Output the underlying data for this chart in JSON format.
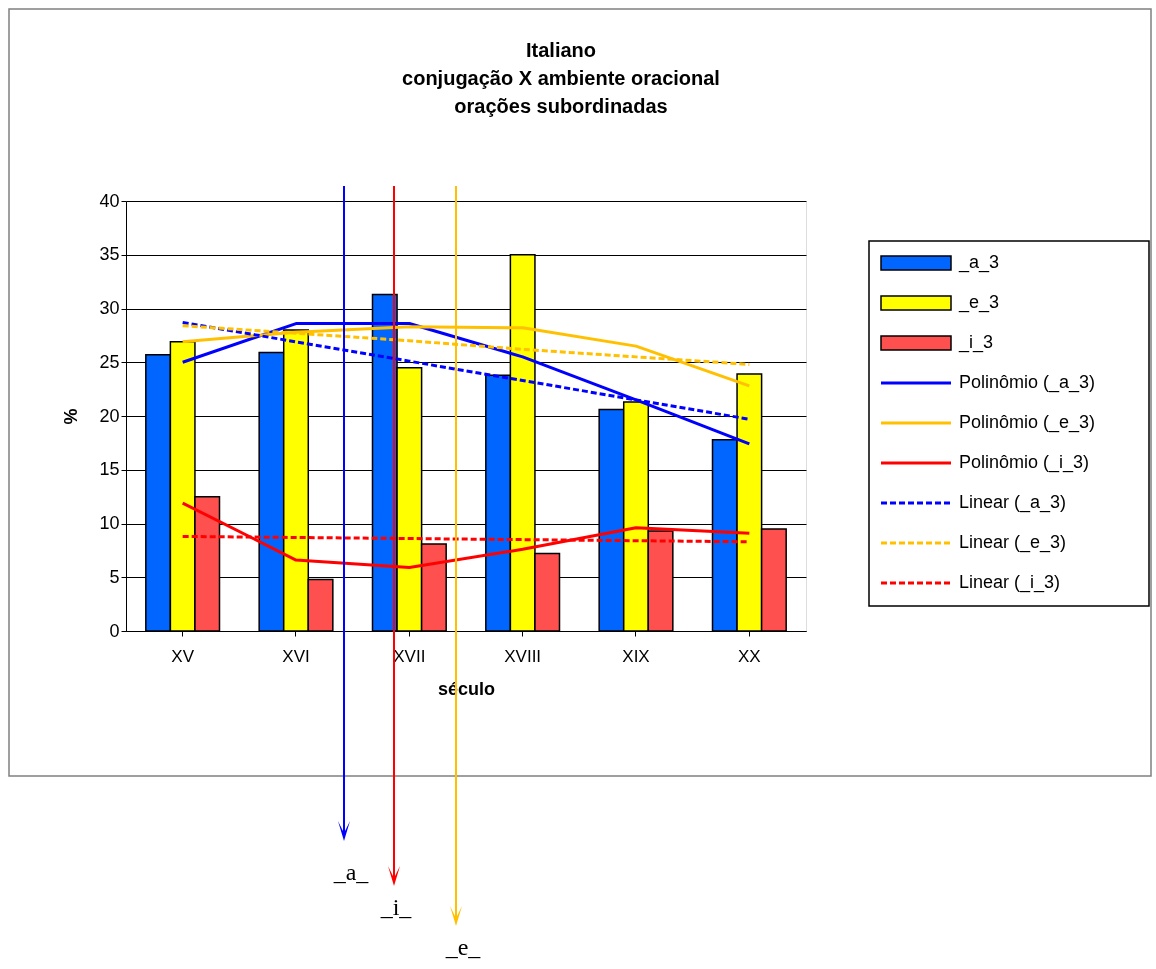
{
  "chart_data": {
    "type": "bar",
    "title": "Italiano\nconjugação X ambiente oracional\norações subordinadas",
    "xlabel": "século",
    "ylabel": "%",
    "categories": [
      "XV",
      "XVI",
      "XVII",
      "XVIII",
      "XIX",
      "XX"
    ],
    "ylim": [
      0,
      40
    ],
    "yticks": [
      0,
      5,
      10,
      15,
      20,
      25,
      30,
      35,
      40
    ],
    "grid": "y",
    "legend": "right",
    "series": [
      {
        "name": "_a_3",
        "color": "#0066ff",
        "values": [
          25.7,
          25.9,
          31.3,
          23.8,
          20.6,
          17.8
        ]
      },
      {
        "name": "_e_3",
        "color": "#ffff00",
        "values": [
          26.9,
          28.0,
          24.5,
          35.0,
          21.3,
          23.9
        ]
      },
      {
        "name": "_i_3",
        "color": "#ff5050",
        "values": [
          12.5,
          4.8,
          8.1,
          7.2,
          9.3,
          9.5
        ]
      },
      {
        "name": "Polinômio (_a_3)",
        "type": "line",
        "line_style": "solid",
        "color": "#0000ff",
        "values": [
          25.0,
          28.6,
          28.6,
          25.5,
          21.5,
          17.4
        ]
      },
      {
        "name": "Polinômio (_e_3)",
        "type": "line",
        "line_style": "solid",
        "color": "#ffc000",
        "values": [
          26.9,
          27.8,
          28.3,
          28.2,
          26.5,
          22.8
        ]
      },
      {
        "name": "Polinômio (_i_3)",
        "type": "line",
        "line_style": "solid",
        "color": "#ff0000",
        "values": [
          11.9,
          6.6,
          5.9,
          7.6,
          9.6,
          9.1
        ]
      },
      {
        "name": "Linear (_a_3)",
        "type": "line",
        "line_style": "dashed",
        "color": "#0000ff",
        "values": [
          28.7,
          26.9,
          25.1,
          23.3,
          21.5,
          19.7
        ]
      },
      {
        "name": "Linear (_e_3)",
        "type": "line",
        "line_style": "dashed",
        "color": "#ffc000",
        "values": [
          28.4,
          27.7,
          27.0,
          26.2,
          25.5,
          24.8
        ]
      },
      {
        "name": "Linear (_i_3)",
        "type": "line",
        "line_style": "dashed",
        "color": "#ff0000",
        "values": [
          8.8,
          8.7,
          8.6,
          8.5,
          8.4,
          8.3
        ]
      }
    ],
    "annotations": [
      "_a_",
      "_i_",
      "_e_"
    ]
  }
}
